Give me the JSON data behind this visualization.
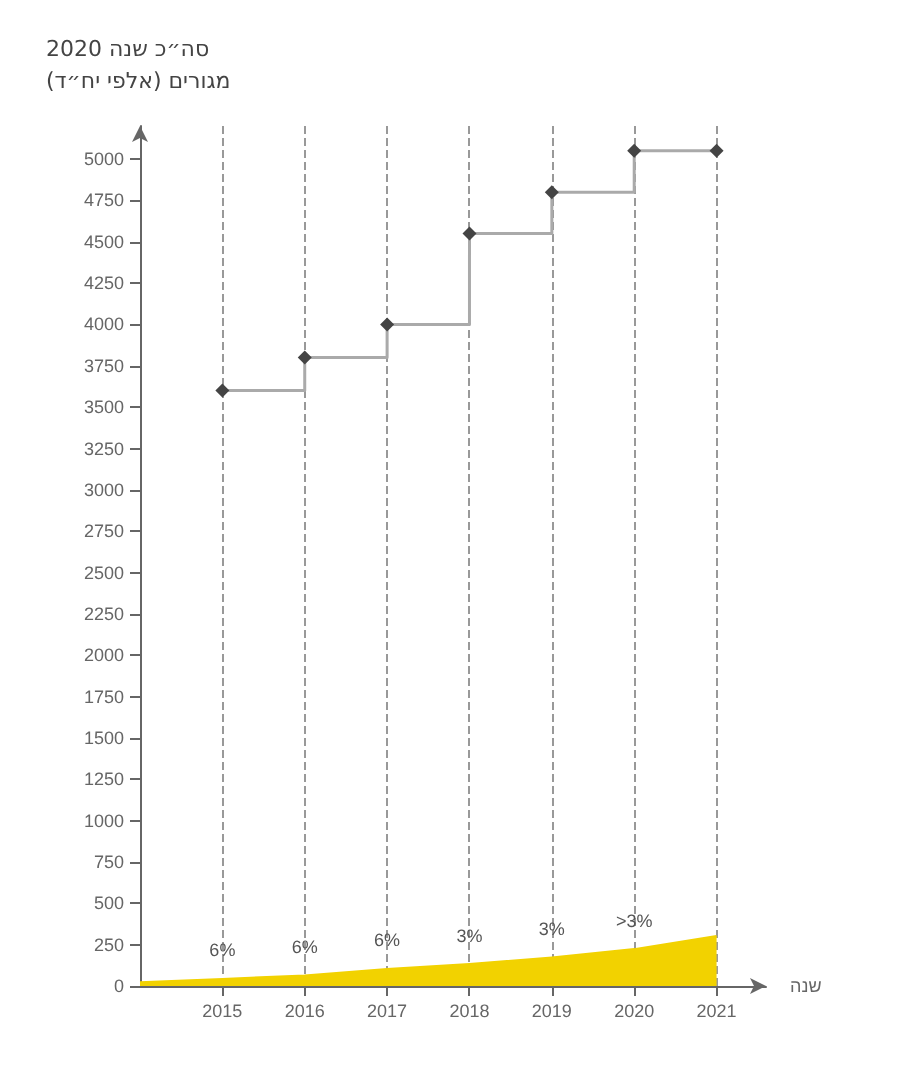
{
  "chart_data": {
    "type": "step",
    "title": "סה״כ שנה 2020",
    "ylabel": "מגורים (אלפי יח״ד)",
    "xlabel": "שנה",
    "xlim": [
      2014,
      2021.6
    ],
    "xticks": [
      2015,
      2016,
      2017,
      2018,
      2019,
      2020,
      2021
    ],
    "ylim": [
      0,
      5200
    ],
    "yticks": [
      0,
      250,
      500,
      750,
      1000,
      1250,
      1500,
      1750,
      2000,
      2250,
      2500,
      2750,
      3000,
      3250,
      3500,
      3750,
      4000,
      4250,
      4500,
      4750,
      5000
    ],
    "grid": "x",
    "marker": "diamond",
    "series": [
      {
        "color": "#aaaaaa",
        "x": [
          2015,
          2016,
          2017,
          2018,
          2019,
          2020,
          2021
        ],
        "values": [
          3600,
          3800,
          4000,
          4550,
          4800,
          5050,
          5050
        ]
      },
      {
        "type": "area",
        "marker": "none",
        "color": "#f2d200",
        "x": [
          2014,
          2015,
          2016,
          2017,
          2018,
          2019,
          2020,
          2021
        ],
        "values": [
          20,
          40,
          60,
          100,
          130,
          170,
          220,
          300
        ]
      }
    ],
    "annotations": [
      {
        "text": "6%",
        "x": 2015,
        "y": 40
      },
      {
        "text": "6%",
        "x": 2016,
        "y": 60
      },
      {
        "text": "6%",
        "x": 2017,
        "y": 100
      },
      {
        "text": "3%",
        "x": 2018,
        "y": 130
      },
      {
        "text": "3%",
        "x": 2019,
        "y": 170
      },
      {
        "text": ">3%",
        "x": 2020,
        "y": 220
      }
    ]
  }
}
